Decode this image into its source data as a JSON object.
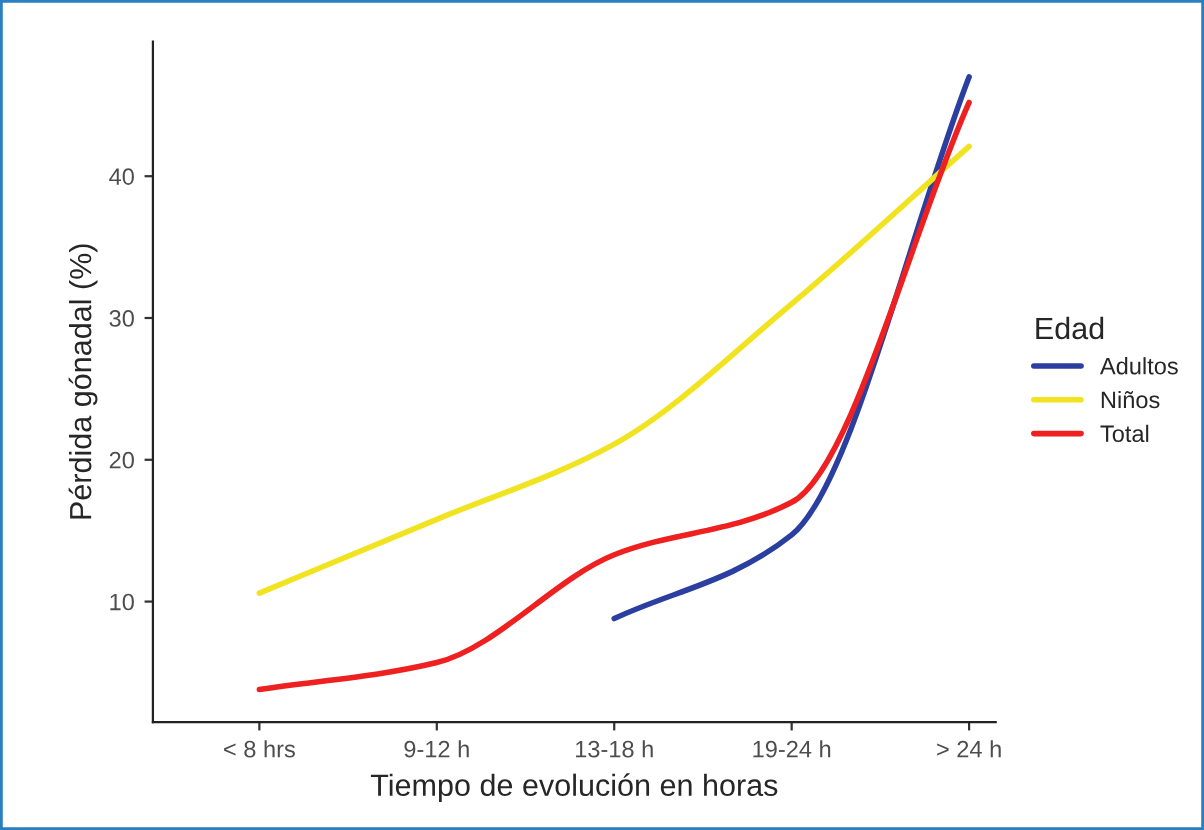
{
  "chart_data": {
    "type": "line",
    "xlabel": "Tiempo de evolución en horas",
    "ylabel": "Pérdida gónadal (%)",
    "legend_title": "Edad",
    "categories": [
      "< 8 hrs",
      "9-12 h",
      "13-18 h",
      "19-24 h",
      "> 24 h"
    ],
    "series": [
      {
        "name": "Adultos",
        "color": "#2b3fa0",
        "values": [
          null,
          null,
          8.8,
          14.7,
          47.0
        ]
      },
      {
        "name": "Niños",
        "color": "#f2e320",
        "values": [
          10.6,
          15.8,
          21.1,
          31.0,
          42.1
        ]
      },
      {
        "name": "Total",
        "color": "#ee2020",
        "values": [
          3.8,
          5.7,
          13.3,
          17.0,
          45.2
        ]
      }
    ],
    "ylim": [
      1.5,
      49.5
    ],
    "yticks": [
      10,
      20,
      30,
      40
    ],
    "grid": false,
    "legend": "right",
    "marker": "none",
    "line_style": "solid"
  }
}
